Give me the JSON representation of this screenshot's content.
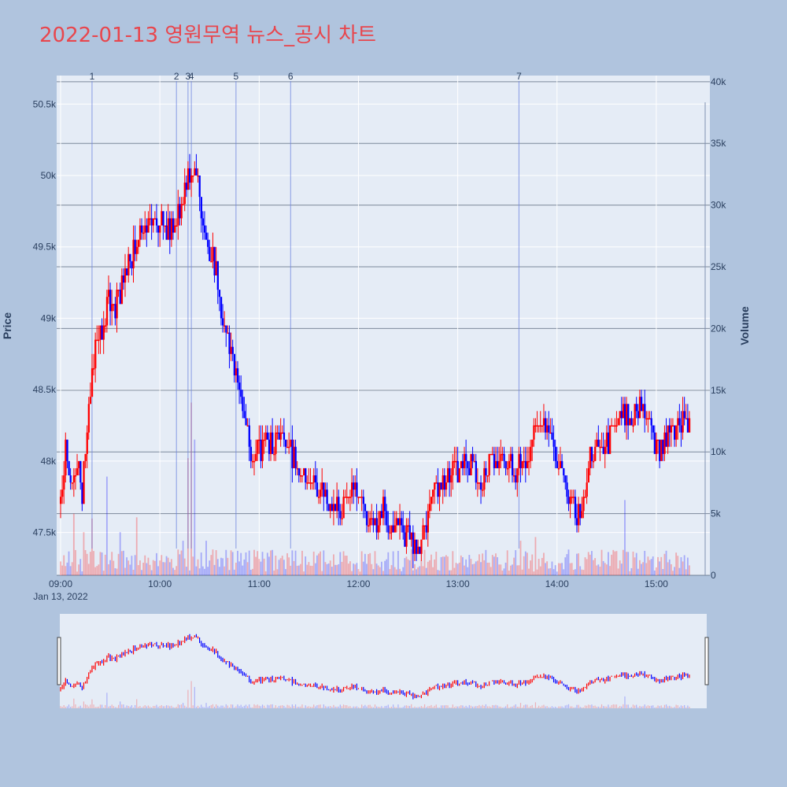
{
  "chart_data": {
    "type": "candlestick",
    "title": "2022-01-13 영원무역 뉴스_공시 차트",
    "ylabel": "Price",
    "y2label": "Volume",
    "date_label": "Jan 13, 2022",
    "x_range": [
      "09:00",
      "15:30"
    ],
    "x_ticks": [
      "09:00",
      "10:00",
      "11:00",
      "12:00",
      "13:00",
      "14:00",
      "15:00"
    ],
    "ylim": [
      47200,
      50700
    ],
    "y_ticks": [
      {
        "value": 47500,
        "label": "47.5k"
      },
      {
        "value": 48000,
        "label": "48k"
      },
      {
        "value": 48500,
        "label": "48.5k"
      },
      {
        "value": 49000,
        "label": "49k"
      },
      {
        "value": 49500,
        "label": "49.5k"
      },
      {
        "value": 50000,
        "label": "50k"
      },
      {
        "value": 50500,
        "label": "50.5k"
      }
    ],
    "y2lim": [
      0,
      40500
    ],
    "y2_ticks": [
      {
        "value": 0,
        "label": "0"
      },
      {
        "value": 5000,
        "label": "5k"
      },
      {
        "value": 10000,
        "label": "10k"
      },
      {
        "value": 15000,
        "label": "15k"
      },
      {
        "value": 20000,
        "label": "20k"
      },
      {
        "value": 25000,
        "label": "25k"
      },
      {
        "value": 30000,
        "label": "30k"
      },
      {
        "value": 35000,
        "label": "35k"
      },
      {
        "value": 40000,
        "label": "40k"
      }
    ],
    "up_color": "#ff0000",
    "down_color": "#0000ff",
    "news_markers": [
      {
        "label": "1",
        "time": "09:19"
      },
      {
        "label": "2",
        "time": "10:10"
      },
      {
        "label": "3",
        "time": "10:17"
      },
      {
        "label": "4",
        "time": "10:19"
      },
      {
        "label": "5",
        "time": "10:46"
      },
      {
        "label": "6",
        "time": "11:19"
      },
      {
        "label": "7",
        "time": "13:37"
      }
    ],
    "price_path": [
      [
        "09:00",
        47700
      ],
      [
        "09:03",
        48100
      ],
      [
        "09:06",
        47850
      ],
      [
        "09:10",
        48000
      ],
      [
        "09:13",
        47800
      ],
      [
        "09:16",
        48200
      ],
      [
        "09:19",
        48600
      ],
      [
        "09:22",
        48900
      ],
      [
        "09:25",
        48850
      ],
      [
        "09:28",
        49150
      ],
      [
        "09:32",
        49050
      ],
      [
        "09:36",
        49200
      ],
      [
        "09:40",
        49350
      ],
      [
        "09:45",
        49500
      ],
      [
        "09:50",
        49600
      ],
      [
        "09:55",
        49650
      ],
      [
        "10:00",
        49700
      ],
      [
        "10:05",
        49600
      ],
      [
        "10:10",
        49700
      ],
      [
        "10:15",
        49900
      ],
      [
        "10:18",
        50050
      ],
      [
        "10:21",
        50100
      ],
      [
        "10:24",
        49850
      ],
      [
        "10:27",
        49600
      ],
      [
        "10:30",
        49500
      ],
      [
        "10:34",
        49300
      ],
      [
        "10:38",
        49000
      ],
      [
        "10:42",
        48800
      ],
      [
        "10:46",
        48550
      ],
      [
        "10:50",
        48350
      ],
      [
        "10:55",
        48100
      ],
      [
        "11:00",
        48050
      ],
      [
        "11:05",
        48150
      ],
      [
        "11:10",
        48100
      ],
      [
        "11:15",
        48200
      ],
      [
        "11:20",
        48050
      ],
      [
        "11:25",
        47950
      ],
      [
        "11:30",
        47850
      ],
      [
        "11:35",
        47800
      ],
      [
        "11:40",
        47750
      ],
      [
        "11:45",
        47700
      ],
      [
        "11:50",
        47650
      ],
      [
        "11:55",
        47800
      ],
      [
        "12:00",
        47750
      ],
      [
        "12:05",
        47650
      ],
      [
        "12:10",
        47550
      ],
      [
        "12:15",
        47650
      ],
      [
        "12:20",
        47500
      ],
      [
        "12:25",
        47600
      ],
      [
        "12:30",
        47450
      ],
      [
        "12:35",
        47400
      ],
      [
        "12:40",
        47500
      ],
      [
        "12:45",
        47750
      ],
      [
        "12:50",
        47850
      ],
      [
        "12:55",
        47900
      ],
      [
        "13:00",
        47950
      ],
      [
        "13:05",
        48000
      ],
      [
        "13:10",
        47950
      ],
      [
        "13:15",
        47850
      ],
      [
        "13:20",
        48000
      ],
      [
        "13:25",
        47950
      ],
      [
        "13:30",
        48000
      ],
      [
        "13:35",
        47950
      ],
      [
        "13:40",
        48000
      ],
      [
        "13:45",
        48100
      ],
      [
        "13:50",
        48350
      ],
      [
        "13:55",
        48150
      ],
      [
        "14:00",
        48000
      ],
      [
        "14:05",
        47850
      ],
      [
        "14:10",
        47650
      ],
      [
        "14:15",
        47600
      ],
      [
        "14:20",
        48000
      ],
      [
        "14:25",
        48150
      ],
      [
        "14:30",
        48100
      ],
      [
        "14:35",
        48250
      ],
      [
        "14:40",
        48300
      ],
      [
        "14:45",
        48350
      ],
      [
        "14:50",
        48400
      ],
      [
        "14:55",
        48300
      ],
      [
        "15:00",
        48050
      ],
      [
        "15:05",
        48150
      ],
      [
        "15:10",
        48200
      ],
      [
        "15:15",
        48250
      ],
      [
        "15:20",
        48250
      ]
    ],
    "volume_spikes": [
      [
        "09:08",
        5000,
        "up"
      ],
      [
        "09:14",
        3500,
        "up"
      ],
      [
        "09:19",
        4600,
        "up"
      ],
      [
        "09:28",
        8000,
        "down"
      ],
      [
        "09:36",
        3500,
        "down"
      ],
      [
        "09:46",
        4700,
        "up"
      ],
      [
        "10:14",
        2800,
        "down"
      ],
      [
        "10:17",
        9500,
        "up"
      ],
      [
        "10:19",
        14000,
        "up"
      ],
      [
        "10:21",
        11000,
        "down"
      ],
      [
        "10:28",
        2800,
        "down"
      ],
      [
        "11:02",
        1900,
        "down"
      ],
      [
        "13:38",
        2800,
        "up"
      ],
      [
        "13:47",
        3100,
        "up"
      ],
      [
        "14:41",
        6100,
        "down"
      ]
    ]
  }
}
